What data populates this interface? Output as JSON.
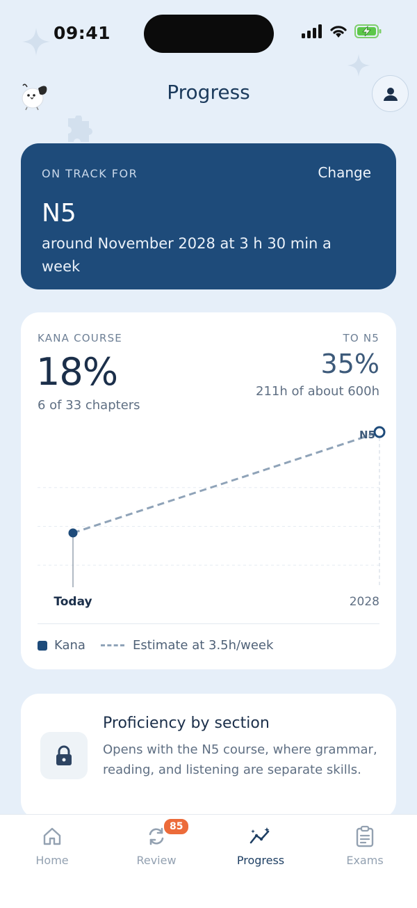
{
  "status_bar": {
    "time": "09:41"
  },
  "header": {
    "title": "Progress"
  },
  "track": {
    "eyebrow": "ON TRACK FOR",
    "change_label": "Change",
    "level": "N5",
    "description": "around November 2028 at 3 h 30 min a week"
  },
  "kana_course": {
    "eyebrow": "KANA COURSE",
    "percent": "18%",
    "chapters": "6 of 33 chapters"
  },
  "to_n5": {
    "eyebrow": "TO N5",
    "percent": "35%",
    "hours": "211h of about 600h"
  },
  "chart_data": {
    "type": "line",
    "x_labels": [
      "Today",
      "2028"
    ],
    "target_label": "N5",
    "series": [
      {
        "name": "Kana",
        "values": [
          35
        ]
      },
      {
        "name": "Estimate at 3.5h/week",
        "values": [
          35,
          100
        ]
      }
    ],
    "ylim": [
      0,
      100
    ],
    "grid": true
  },
  "legend": {
    "kana": "Kana",
    "estimate": "Estimate at 3.5h/week"
  },
  "proficiency": {
    "title": "Proficiency by section",
    "description": "Opens with the N5 course, where grammar, reading, and listening are separate skills."
  },
  "tabs": [
    {
      "label": "Home"
    },
    {
      "label": "Review",
      "badge": "85"
    },
    {
      "label": "Progress"
    },
    {
      "label": "Exams"
    }
  ],
  "colors": {
    "primary": "#1e4b7a",
    "background": "#e6eff9",
    "badge": "#ec6b3a"
  }
}
